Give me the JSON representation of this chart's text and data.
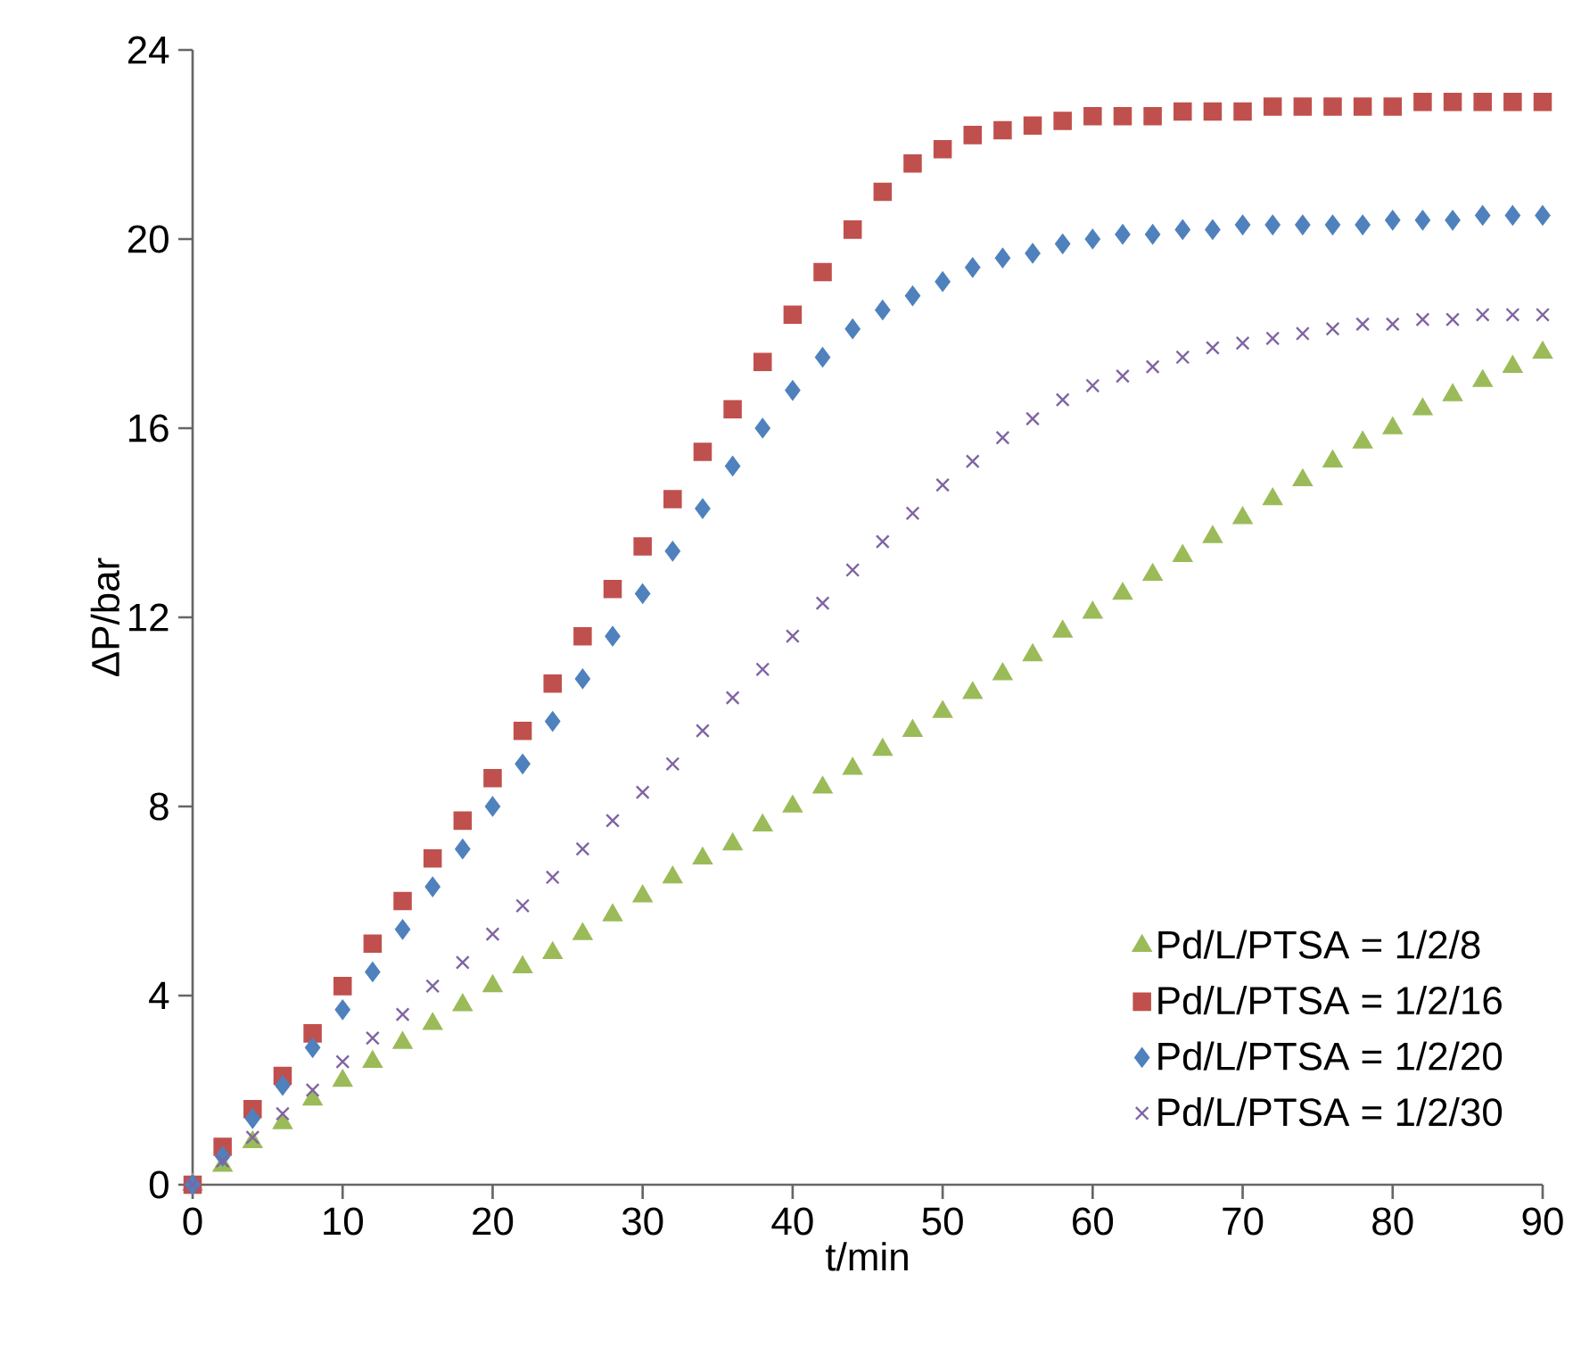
{
  "chart_data": {
    "type": "scatter",
    "xlabel": "t/min",
    "ylabel": "ΔP/bar",
    "x": [
      0,
      2,
      4,
      6,
      8,
      10,
      12,
      14,
      16,
      18,
      20,
      22,
      24,
      26,
      28,
      30,
      32,
      34,
      36,
      38,
      40,
      42,
      44,
      46,
      48,
      50,
      52,
      54,
      56,
      58,
      60,
      62,
      64,
      66,
      68,
      70,
      72,
      74,
      76,
      78,
      80,
      82,
      84,
      86,
      88,
      90
    ],
    "xlim": [
      0,
      90
    ],
    "xticks": [
      0,
      10,
      20,
      30,
      40,
      50,
      60,
      70,
      80,
      90
    ],
    "ylim": [
      0,
      24
    ],
    "yticks": [
      0,
      4,
      8,
      12,
      16,
      20,
      24
    ],
    "grid": false,
    "legend": "bottom right",
    "series": [
      {
        "name": "Pd/L/PTSA = 1/2/8",
        "color": "#9bbb59",
        "marker": "triangle",
        "values": [
          0,
          0.4,
          0.9,
          1.3,
          1.8,
          2.2,
          2.6,
          3.0,
          3.4,
          3.8,
          4.2,
          4.6,
          4.9,
          5.3,
          5.7,
          6.1,
          6.5,
          6.9,
          7.2,
          7.6,
          8.0,
          8.4,
          8.8,
          9.2,
          9.6,
          10.0,
          10.4,
          10.8,
          11.2,
          11.7,
          12.1,
          12.5,
          12.9,
          13.3,
          13.7,
          14.1,
          14.5,
          14.9,
          15.3,
          15.7,
          16.0,
          16.4,
          16.7,
          17.0,
          17.3,
          17.6
        ]
      },
      {
        "name": "Pd/L/PTSA = 1/2/16",
        "color": "#c0504d",
        "marker": "square",
        "values": [
          0,
          0.8,
          1.6,
          2.3,
          3.2,
          4.2,
          5.1,
          6.0,
          6.9,
          7.7,
          8.6,
          9.6,
          10.6,
          11.6,
          12.6,
          13.5,
          14.5,
          15.5,
          16.4,
          17.4,
          18.4,
          19.3,
          20.2,
          21.0,
          21.6,
          21.9,
          22.2,
          22.3,
          22.4,
          22.5,
          22.6,
          22.6,
          22.6,
          22.7,
          22.7,
          22.7,
          22.8,
          22.8,
          22.8,
          22.8,
          22.8,
          22.9,
          22.9,
          22.9,
          22.9,
          22.9
        ]
      },
      {
        "name": "Pd/L/PTSA = 1/2/20",
        "color": "#4f81bd",
        "marker": "diamond",
        "values": [
          0,
          0.6,
          1.4,
          2.1,
          2.9,
          3.7,
          4.5,
          5.4,
          6.3,
          7.1,
          8.0,
          8.9,
          9.8,
          10.7,
          11.6,
          12.5,
          13.4,
          14.3,
          15.2,
          16.0,
          16.8,
          17.5,
          18.1,
          18.5,
          18.8,
          19.1,
          19.4,
          19.6,
          19.7,
          19.9,
          20.0,
          20.1,
          20.1,
          20.2,
          20.2,
          20.3,
          20.3,
          20.3,
          20.3,
          20.3,
          20.4,
          20.4,
          20.4,
          20.5,
          20.5,
          20.5
        ]
      },
      {
        "name": "Pd/L/PTSA = 1/2/30",
        "color": "#8064a2",
        "marker": "cross",
        "values": [
          0,
          0.5,
          1.0,
          1.5,
          2.0,
          2.6,
          3.1,
          3.6,
          4.2,
          4.7,
          5.3,
          5.9,
          6.5,
          7.1,
          7.7,
          8.3,
          8.9,
          9.6,
          10.3,
          10.9,
          11.6,
          12.3,
          13.0,
          13.6,
          14.2,
          14.8,
          15.3,
          15.8,
          16.2,
          16.6,
          16.9,
          17.1,
          17.3,
          17.5,
          17.7,
          17.8,
          17.9,
          18.0,
          18.1,
          18.2,
          18.2,
          18.3,
          18.3,
          18.4,
          18.4,
          18.4
        ]
      }
    ]
  }
}
